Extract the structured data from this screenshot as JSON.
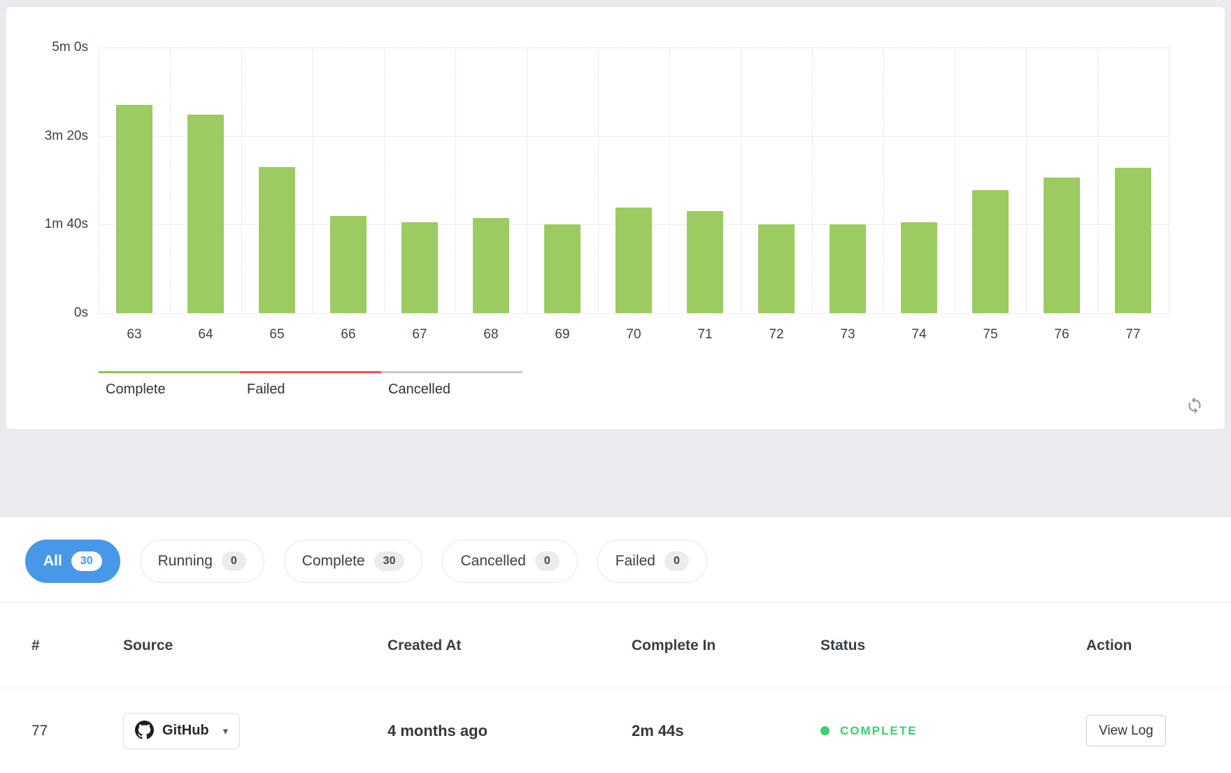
{
  "colors": {
    "accent_blue": "#4798e9",
    "bar_green": "#9ccb62",
    "failed_red": "#ef534f",
    "cancelled_gray": "#c9c9c9",
    "status_green": "#3ecf70"
  },
  "chart_data": {
    "type": "bar",
    "title": "",
    "xlabel": "",
    "ylabel": "",
    "categories": [
      "63",
      "64",
      "65",
      "66",
      "67",
      "68",
      "69",
      "70",
      "71",
      "72",
      "73",
      "74",
      "75",
      "76",
      "77"
    ],
    "values": [
      235,
      224,
      165,
      110,
      103,
      107,
      100,
      119,
      115,
      100,
      100,
      103,
      139,
      153,
      164
    ],
    "values_unit": "seconds",
    "ylim": [
      0,
      300
    ],
    "y_ticks": [
      {
        "value": 0,
        "label": "0s"
      },
      {
        "value": 100,
        "label": "1m 40s"
      },
      {
        "value": 200,
        "label": "3m 20s"
      },
      {
        "value": 300,
        "label": "5m 0s"
      }
    ],
    "grid": true,
    "bar_color": "#9ccb62",
    "legend_position": "bottom-left",
    "legend": [
      {
        "label": "Complete",
        "color": "#8bc34a"
      },
      {
        "label": "Failed",
        "color": "#ef534f"
      },
      {
        "label": "Cancelled",
        "color": "#c9c9c9"
      }
    ]
  },
  "filters": [
    {
      "label": "All",
      "count": "30",
      "active": true
    },
    {
      "label": "Running",
      "count": "0",
      "active": false
    },
    {
      "label": "Complete",
      "count": "30",
      "active": false
    },
    {
      "label": "Cancelled",
      "count": "0",
      "active": false
    },
    {
      "label": "Failed",
      "count": "0",
      "active": false
    }
  ],
  "table": {
    "headers": [
      "#",
      "Source",
      "Created At",
      "Complete In",
      "Status",
      "Action"
    ],
    "rows": [
      {
        "number": "77",
        "source": "GitHub",
        "created_at": "4 months ago",
        "complete_in": "2m 44s",
        "status": "COMPLETE",
        "action": "View Log"
      }
    ]
  },
  "icons": {
    "github": "octocat-mark",
    "chevron_down": "▾",
    "refresh": "circular-arrows",
    "status_dot": "●"
  }
}
